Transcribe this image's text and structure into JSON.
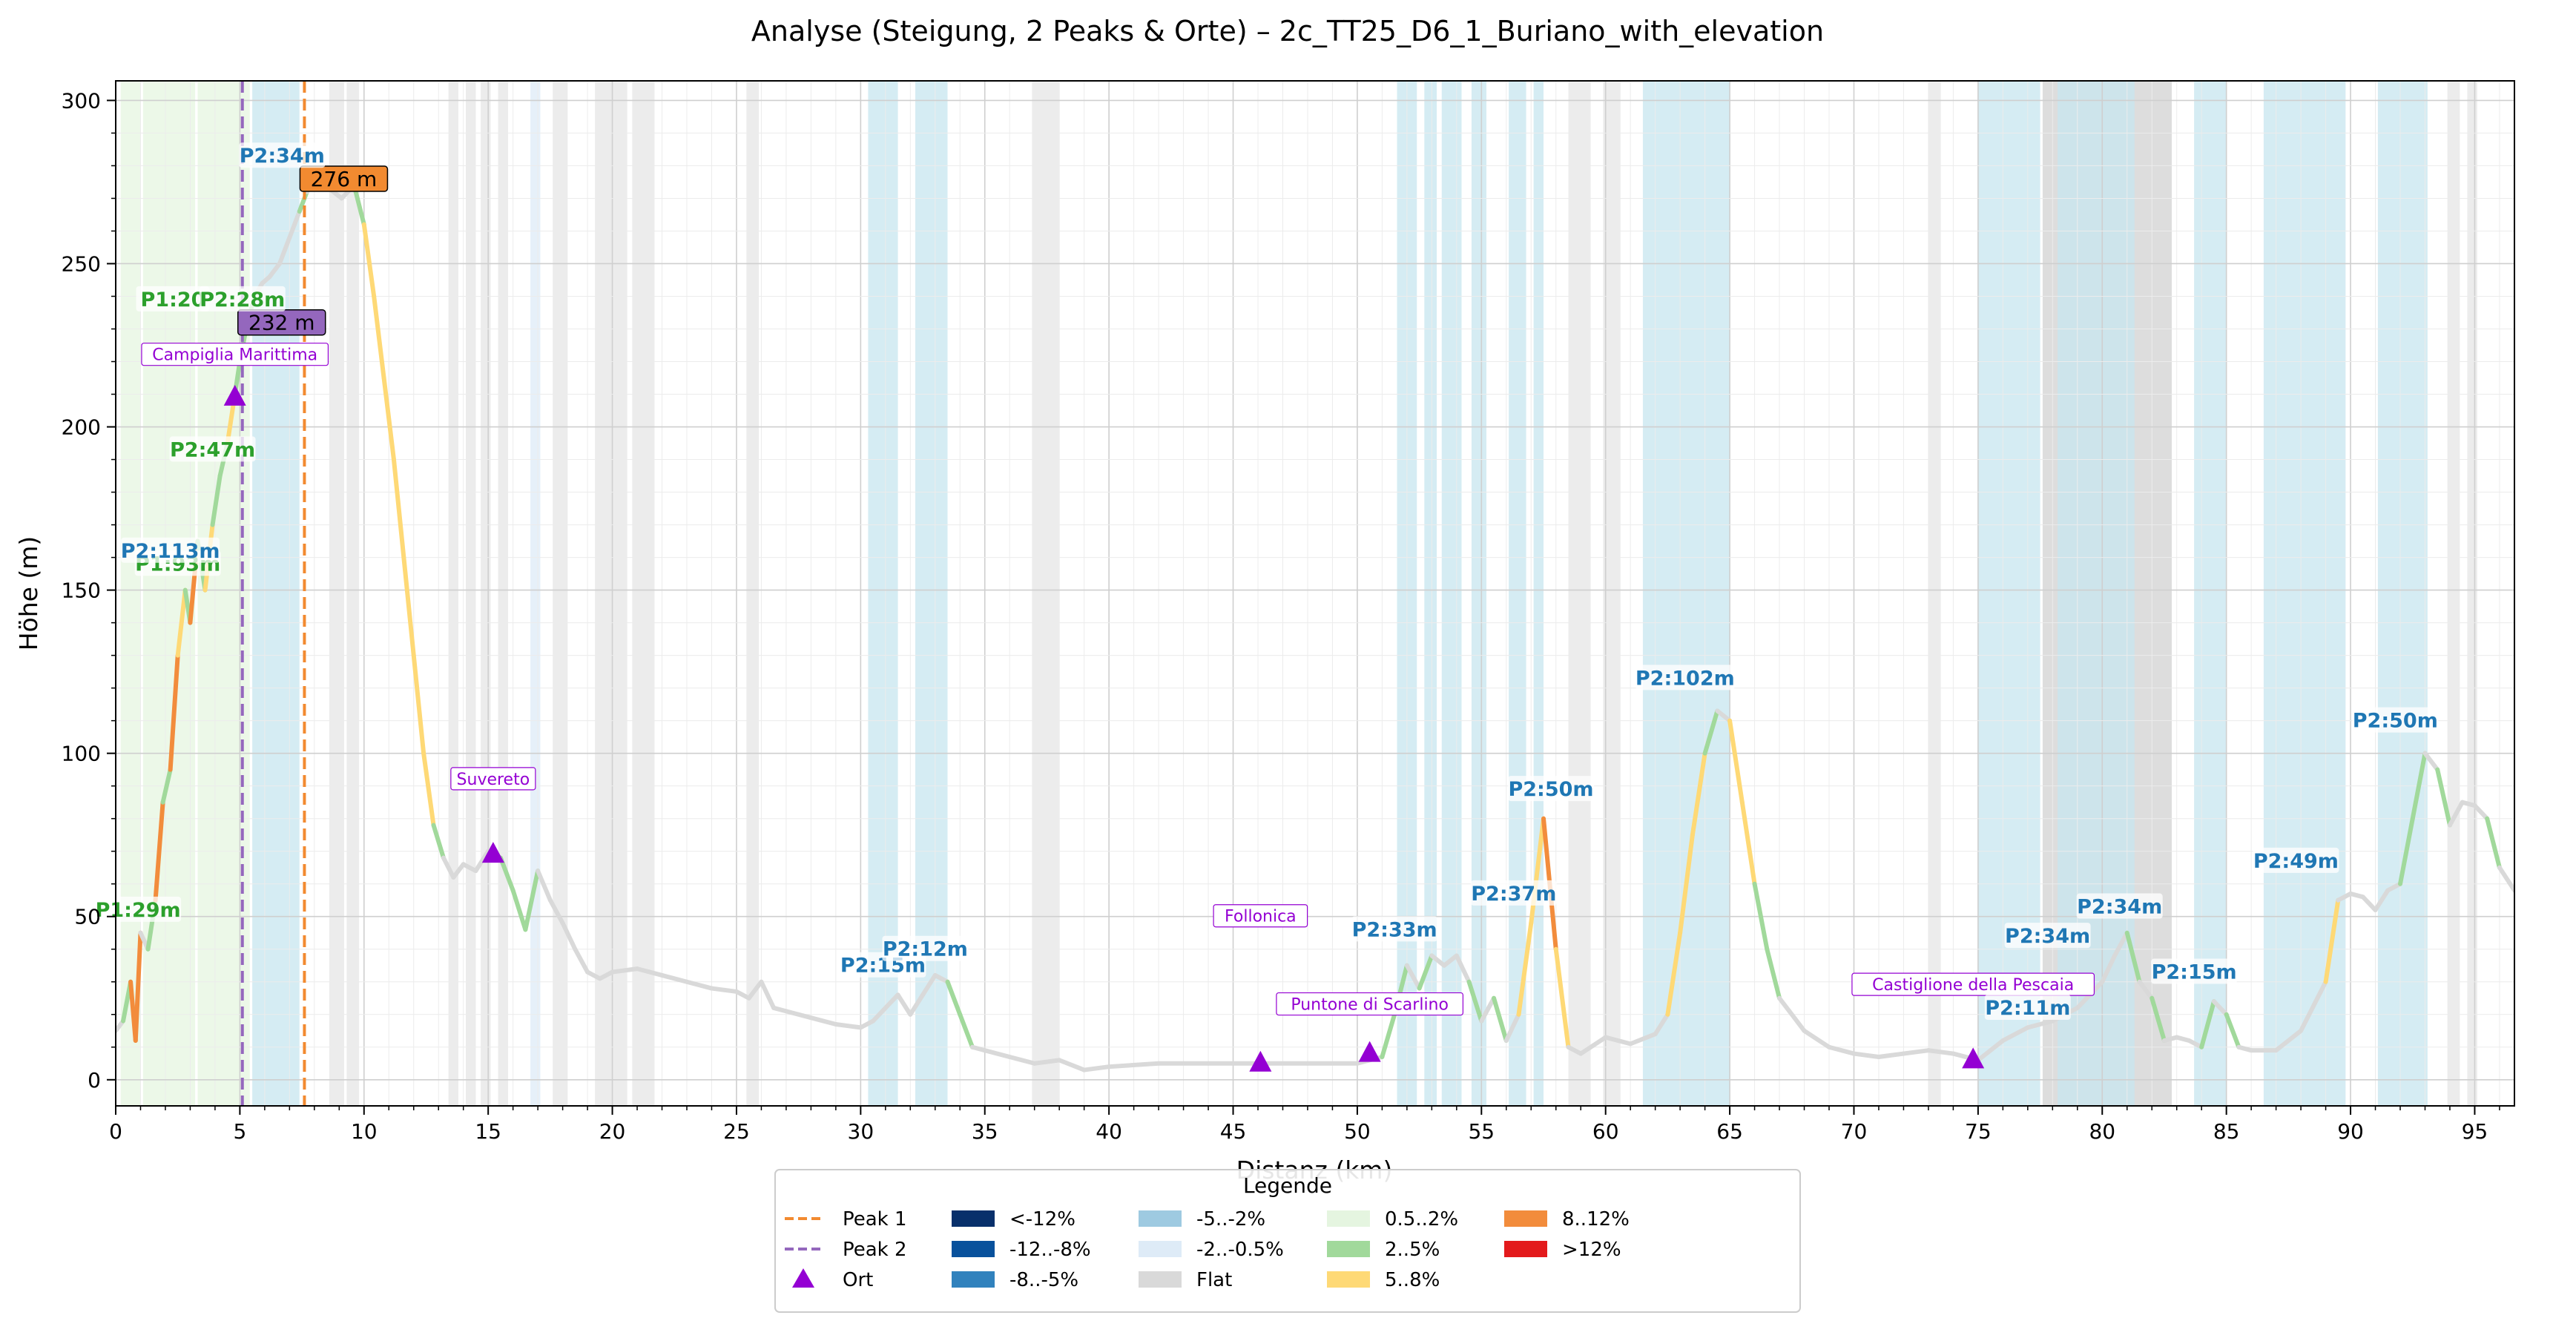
{
  "chart_data": {
    "type": "line",
    "title": "Analyse (Steigung, 2 Peaks & Orte) – 2c_TT25_D6_1_Buriano_with_elevation",
    "xlabel": "Distanz (km)",
    "ylabel": "Höhe (m)",
    "xlim": [
      0,
      96.6
    ],
    "ylim": [
      -8,
      306
    ],
    "xticks": [
      0,
      5,
      10,
      15,
      20,
      25,
      30,
      35,
      40,
      45,
      50,
      55,
      60,
      65,
      70,
      75,
      80,
      85,
      90,
      95
    ],
    "yticks": [
      0,
      50,
      100,
      150,
      200,
      250,
      300
    ],
    "grid": true,
    "colors": {
      "lt_m12": "#08306b",
      "m12_m8": "#08519c",
      "m8_m5": "#3182bd",
      "m5_m2": "#9ecae1",
      "m2_m05": "#deebf7",
      "flat": "#d9d9d9",
      "p05_2": "#e5f5e0",
      "p2_5": "#a1d99b",
      "p5_8": "#fed976",
      "p8_12": "#f28c3c",
      "gt12": "#e31a1c",
      "peak1": "#f28a30",
      "peak2": "#9467bd",
      "ort": "#9400d3",
      "climb_green": "#2ca02c",
      "climb_blue": "#1f77b4",
      "ort_label": "#9400d3"
    },
    "profile": [
      [
        0,
        15
      ],
      [
        0.3,
        18
      ],
      [
        0.6,
        30
      ],
      [
        0.8,
        12
      ],
      [
        1.0,
        45
      ],
      [
        1.3,
        40
      ],
      [
        1.6,
        55
      ],
      [
        1.9,
        85
      ],
      [
        2.2,
        95
      ],
      [
        2.5,
        130
      ],
      [
        2.8,
        150
      ],
      [
        3.0,
        140
      ],
      [
        3.3,
        165
      ],
      [
        3.6,
        150
      ],
      [
        3.9,
        170
      ],
      [
        4.2,
        185
      ],
      [
        4.5,
        195
      ],
      [
        4.8,
        210
      ],
      [
        5.0,
        220
      ],
      [
        5.3,
        232
      ],
      [
        5.6,
        240
      ],
      [
        5.9,
        244
      ],
      [
        6.2,
        246
      ],
      [
        6.6,
        250
      ],
      [
        7.0,
        258
      ],
      [
        7.4,
        266
      ],
      [
        7.7,
        272
      ],
      [
        8.1,
        276
      ],
      [
        8.6,
        273
      ],
      [
        9.1,
        270
      ],
      [
        9.6,
        274
      ],
      [
        10.0,
        262
      ],
      [
        10.4,
        240
      ],
      [
        10.8,
        215
      ],
      [
        11.2,
        190
      ],
      [
        11.6,
        160
      ],
      [
        12.0,
        130
      ],
      [
        12.4,
        100
      ],
      [
        12.8,
        78
      ],
      [
        13.2,
        68
      ],
      [
        13.6,
        62
      ],
      [
        14.0,
        66
      ],
      [
        14.5,
        64
      ],
      [
        15.0,
        70
      ],
      [
        15.5,
        68
      ],
      [
        16.0,
        58
      ],
      [
        16.5,
        46
      ],
      [
        17.0,
        64
      ],
      [
        17.5,
        55
      ],
      [
        18.0,
        48
      ],
      [
        18.5,
        40
      ],
      [
        19.0,
        33
      ],
      [
        19.5,
        31
      ],
      [
        20.0,
        33
      ],
      [
        21.0,
        34
      ],
      [
        22.0,
        32
      ],
      [
        23.0,
        30
      ],
      [
        24.0,
        28
      ],
      [
        25.0,
        27
      ],
      [
        25.5,
        25
      ],
      [
        26.0,
        30
      ],
      [
        26.5,
        22
      ],
      [
        27.0,
        21
      ],
      [
        28.0,
        19
      ],
      [
        29.0,
        17
      ],
      [
        30.0,
        16
      ],
      [
        30.5,
        18
      ],
      [
        31.0,
        22
      ],
      [
        31.5,
        26
      ],
      [
        32.0,
        20
      ],
      [
        32.5,
        26
      ],
      [
        33.0,
        32
      ],
      [
        33.5,
        30
      ],
      [
        34.0,
        20
      ],
      [
        34.5,
        10
      ],
      [
        35.0,
        9
      ],
      [
        36.0,
        7
      ],
      [
        37.0,
        5
      ],
      [
        38.0,
        6
      ],
      [
        39.0,
        3
      ],
      [
        40.0,
        4
      ],
      [
        42.0,
        5
      ],
      [
        44.0,
        5
      ],
      [
        46.0,
        5
      ],
      [
        48.0,
        5
      ],
      [
        50.0,
        5
      ],
      [
        51.0,
        7
      ],
      [
        51.5,
        20
      ],
      [
        52.0,
        35
      ],
      [
        52.5,
        28
      ],
      [
        53.0,
        38
      ],
      [
        53.5,
        35
      ],
      [
        54.0,
        38
      ],
      [
        54.5,
        30
      ],
      [
        55.0,
        18
      ],
      [
        55.5,
        25
      ],
      [
        56.0,
        12
      ],
      [
        56.5,
        20
      ],
      [
        57.0,
        48
      ],
      [
        57.5,
        80
      ],
      [
        58.0,
        40
      ],
      [
        58.5,
        10
      ],
      [
        59.0,
        8
      ],
      [
        60.0,
        13
      ],
      [
        61.0,
        11
      ],
      [
        62.0,
        14
      ],
      [
        62.5,
        20
      ],
      [
        63.0,
        45
      ],
      [
        63.5,
        75
      ],
      [
        64.0,
        100
      ],
      [
        64.5,
        113
      ],
      [
        65.0,
        110
      ],
      [
        65.5,
        85
      ],
      [
        66.0,
        60
      ],
      [
        66.5,
        40
      ],
      [
        67.0,
        25
      ],
      [
        68.0,
        15
      ],
      [
        69.0,
        10
      ],
      [
        70.0,
        8
      ],
      [
        71.0,
        7
      ],
      [
        72.0,
        8
      ],
      [
        73.0,
        9
      ],
      [
        74.0,
        8
      ],
      [
        75.0,
        6
      ],
      [
        76.0,
        12
      ],
      [
        77.0,
        16
      ],
      [
        78.0,
        18
      ],
      [
        79.0,
        22
      ],
      [
        80.0,
        30
      ],
      [
        80.5,
        38
      ],
      [
        81.0,
        45
      ],
      [
        81.5,
        30
      ],
      [
        82.0,
        25
      ],
      [
        82.5,
        12
      ],
      [
        83.0,
        13
      ],
      [
        83.5,
        12
      ],
      [
        84.0,
        10
      ],
      [
        84.5,
        24
      ],
      [
        85.0,
        20
      ],
      [
        85.5,
        10
      ],
      [
        86.0,
        9
      ],
      [
        87.0,
        9
      ],
      [
        88.0,
        15
      ],
      [
        89.0,
        30
      ],
      [
        89.5,
        55
      ],
      [
        90.0,
        57
      ],
      [
        90.5,
        56
      ],
      [
        91.0,
        52
      ],
      [
        91.5,
        58
      ],
      [
        92.0,
        60
      ],
      [
        92.5,
        80
      ],
      [
        93.0,
        100
      ],
      [
        93.5,
        95
      ],
      [
        94.0,
        78
      ],
      [
        94.5,
        85
      ],
      [
        95.0,
        84
      ],
      [
        95.5,
        80
      ],
      [
        96.0,
        65
      ],
      [
        96.6,
        58
      ]
    ],
    "peaks": [
      {
        "name": "Peak 1",
        "x": 7.6,
        "y": 276,
        "label": "276 m"
      },
      {
        "name": "Peak 2",
        "x": 5.1,
        "y": 232,
        "label": "232 m"
      }
    ],
    "orte": [
      {
        "name": "Campiglia Marittima",
        "x": 4.8,
        "y": 209,
        "lx": 4.8,
        "ly": 222
      },
      {
        "name": "Suvereto",
        "x": 15.2,
        "y": 69,
        "lx": 15.2,
        "ly": 92
      },
      {
        "name": "Follonica",
        "x": 46.1,
        "y": 5,
        "lx": 46.1,
        "ly": 50
      },
      {
        "name": "Puntone di Scarlino",
        "x": 50.5,
        "y": 8,
        "lx": 50.5,
        "ly": 23
      },
      {
        "name": "Castiglione della Pescaia",
        "x": 74.8,
        "y": 6,
        "lx": 74.8,
        "ly": 29
      }
    ],
    "climb_labels": [
      {
        "text": "P1:29m",
        "x": 0.9,
        "y": 52,
        "color": "green"
      },
      {
        "text": "P1:93m",
        "x": 2.5,
        "y": 158,
        "color": "green"
      },
      {
        "text": "P2:113m",
        "x": 2.2,
        "y": 162,
        "color": "blue"
      },
      {
        "text": "P2:47m",
        "x": 3.9,
        "y": 193,
        "color": "green"
      },
      {
        "text": "P1:20",
        "x": 2.3,
        "y": 239,
        "color": "green"
      },
      {
        "text": "P2:28m",
        "x": 5.1,
        "y": 239,
        "color": "green"
      },
      {
        "text": "P2:34m",
        "x": 6.7,
        "y": 283,
        "color": "blue"
      },
      {
        "text": "P2:15m",
        "x": 30.9,
        "y": 35,
        "color": "blue"
      },
      {
        "text": "P2:12m",
        "x": 32.6,
        "y": 40,
        "color": "blue"
      },
      {
        "text": "P2:33m",
        "x": 51.5,
        "y": 46,
        "color": "blue"
      },
      {
        "text": "P2:37m",
        "x": 56.3,
        "y": 57,
        "color": "blue"
      },
      {
        "text": "P2:50m",
        "x": 57.8,
        "y": 89,
        "color": "blue"
      },
      {
        "text": "P2:102m",
        "x": 63.2,
        "y": 123,
        "color": "blue"
      },
      {
        "text": "P2:34m",
        "x": 77.8,
        "y": 44,
        "color": "blue"
      },
      {
        "text": "P2:34m",
        "x": 80.7,
        "y": 53,
        "color": "blue"
      },
      {
        "text": "P2:11m",
        "x": 77.0,
        "y": 22,
        "color": "blue"
      },
      {
        "text": "P2:15m",
        "x": 83.7,
        "y": 33,
        "color": "blue"
      },
      {
        "text": "P2:49m",
        "x": 87.8,
        "y": 67,
        "color": "blue"
      },
      {
        "text": "P2:50m",
        "x": 91.8,
        "y": 110,
        "color": "blue"
      }
    ],
    "bands": [
      {
        "x0": 0.2,
        "x1": 1.0,
        "c": "#e5f5e0"
      },
      {
        "x0": 1.1,
        "x1": 3.2,
        "c": "#e5f5e0"
      },
      {
        "x0": 3.3,
        "x1": 5.4,
        "c": "#e5f5e0"
      },
      {
        "x0": 5.5,
        "x1": 7.4,
        "c": "#c7e6ef"
      },
      {
        "x0": 8.6,
        "x1": 9.2,
        "c": "#e6e6e6"
      },
      {
        "x0": 9.3,
        "x1": 9.8,
        "c": "#e6e6e6"
      },
      {
        "x0": 13.4,
        "x1": 13.8,
        "c": "#e6e6e6"
      },
      {
        "x0": 14.1,
        "x1": 14.5,
        "c": "#e6e6e6"
      },
      {
        "x0": 14.7,
        "x1": 15.1,
        "c": "#e6e6e6"
      },
      {
        "x0": 15.4,
        "x1": 15.8,
        "c": "#e6e6e6"
      },
      {
        "x0": 16.7,
        "x1": 17.1,
        "c": "#deebf7"
      },
      {
        "x0": 17.6,
        "x1": 18.2,
        "c": "#e6e6e6"
      },
      {
        "x0": 19.3,
        "x1": 20.6,
        "c": "#e6e6e6"
      },
      {
        "x0": 20.8,
        "x1": 21.7,
        "c": "#e6e6e6"
      },
      {
        "x0": 25.4,
        "x1": 25.9,
        "c": "#e6e6e6"
      },
      {
        "x0": 30.3,
        "x1": 31.5,
        "c": "#c7e6ef"
      },
      {
        "x0": 32.2,
        "x1": 33.5,
        "c": "#c7e6ef"
      },
      {
        "x0": 36.9,
        "x1": 38.0,
        "c": "#e6e6e6"
      },
      {
        "x0": 51.6,
        "x1": 52.4,
        "c": "#c7e6ef"
      },
      {
        "x0": 52.7,
        "x1": 53.2,
        "c": "#c7e6ef"
      },
      {
        "x0": 53.4,
        "x1": 54.2,
        "c": "#c7e6ef"
      },
      {
        "x0": 54.6,
        "x1": 55.2,
        "c": "#c7e6ef"
      },
      {
        "x0": 56.1,
        "x1": 56.8,
        "c": "#c7e6ef"
      },
      {
        "x0": 57.1,
        "x1": 57.5,
        "c": "#c7e6ef"
      },
      {
        "x0": 58.5,
        "x1": 59.4,
        "c": "#e6e6e6"
      },
      {
        "x0": 59.9,
        "x1": 60.6,
        "c": "#e6e6e6"
      },
      {
        "x0": 61.5,
        "x1": 65.0,
        "c": "#c7e6ef"
      },
      {
        "x0": 73.0,
        "x1": 73.5,
        "c": "#e6e6e6"
      },
      {
        "x0": 75.0,
        "x1": 77.5,
        "c": "#c7e6ef"
      },
      {
        "x0": 77.6,
        "x1": 82.8,
        "c": "#d2d2d2"
      },
      {
        "x0": 78.2,
        "x1": 81.3,
        "c": "#c7e6ef"
      },
      {
        "x0": 83.7,
        "x1": 85.0,
        "c": "#c7e6ef"
      },
      {
        "x0": 86.5,
        "x1": 89.8,
        "c": "#c7e6ef"
      },
      {
        "x0": 91.1,
        "x1": 93.1,
        "c": "#c7e6ef"
      },
      {
        "x0": 93.9,
        "x1": 94.4,
        "c": "#e6e6e6"
      },
      {
        "x0": 94.7,
        "x1": 95.1,
        "c": "#e6e6e6"
      }
    ],
    "legend": {
      "title": "Legende",
      "placement": "bottom-center",
      "items": [
        {
          "label": "Peak 1",
          "kind": "dash",
          "color": "#f28a30"
        },
        {
          "label": "Peak 2",
          "kind": "dash",
          "color": "#9467bd"
        },
        {
          "label": "Ort",
          "kind": "triangle",
          "color": "#9400d3"
        },
        {
          "label": "<-12%",
          "kind": "patch",
          "color": "#08306b"
        },
        {
          "label": "-12..-8%",
          "kind": "patch",
          "color": "#08519c"
        },
        {
          "label": "-8..-5%",
          "kind": "patch",
          "color": "#3182bd"
        },
        {
          "label": "-5..-2%",
          "kind": "patch",
          "color": "#9ecae1"
        },
        {
          "label": "-2..-0.5%",
          "kind": "patch",
          "color": "#deebf7"
        },
        {
          "label": "Flat",
          "kind": "patch",
          "color": "#d9d9d9"
        },
        {
          "label": "0.5..2%",
          "kind": "patch",
          "color": "#e5f5e0"
        },
        {
          "label": "2..5%",
          "kind": "patch",
          "color": "#a1d99b"
        },
        {
          "label": "5..8%",
          "kind": "patch",
          "color": "#fed976"
        },
        {
          "label": "8..12%",
          "kind": "patch",
          "color": "#f28c3c"
        },
        {
          "label": ">12%",
          "kind": "patch",
          "color": "#e31a1c"
        }
      ]
    }
  }
}
